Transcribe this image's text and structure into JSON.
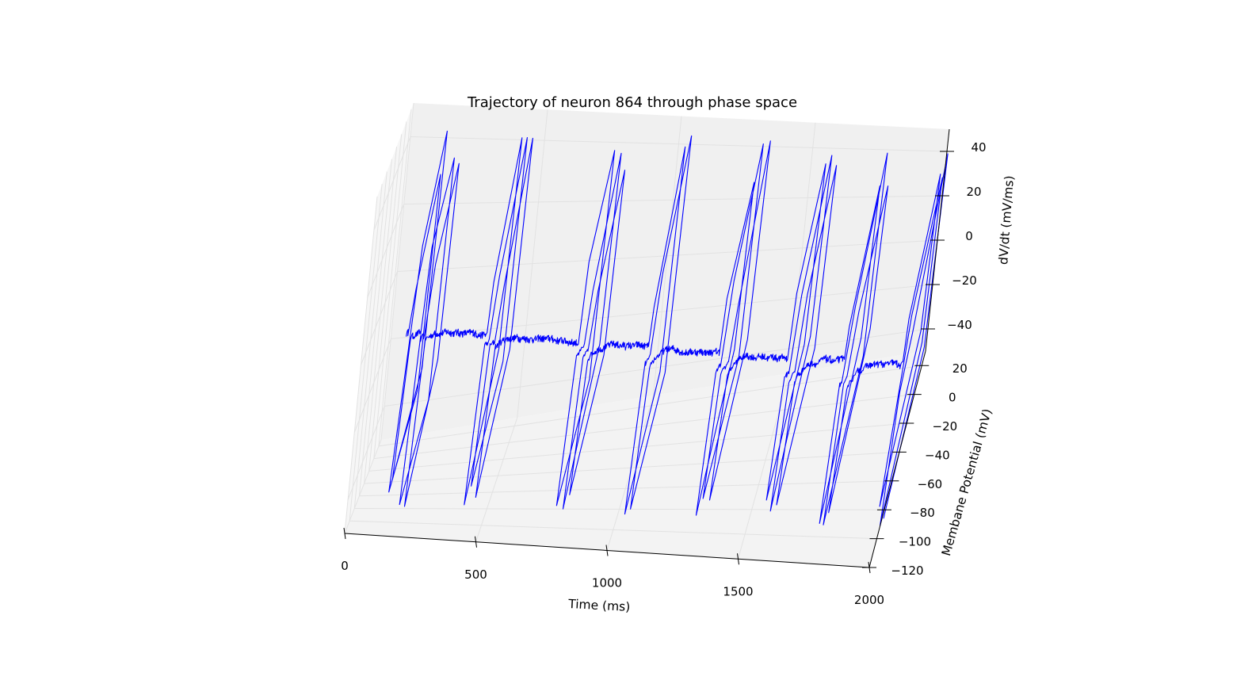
{
  "chart_data": {
    "type": "line",
    "projection": "3d",
    "title": "Trajectory of neuron 864 through phase space",
    "xlabel": "Time (ms)",
    "ylabel": "Membane Potential (mV)",
    "zlabel": "dV/dt (mV/ms)",
    "xlim": [
      0,
      2000
    ],
    "ylim": [
      -120,
      30
    ],
    "zlim": [
      -50,
      50
    ],
    "x_ticks": [
      "0",
      "500",
      "1000",
      "1500",
      "2000"
    ],
    "y_ticks": [
      "−120",
      "−100",
      "−80",
      "−60",
      "−40",
      "−20",
      "0",
      "20"
    ],
    "z_ticks": [
      "−40",
      "−20",
      "0",
      "20",
      "40"
    ],
    "grid": true,
    "colors": {
      "line": "#0000ff",
      "pane_back": "#f0f0f0",
      "pane_side": "#f6f6f6",
      "pane_floor": "#f3f3f3",
      "grid": "#e2e2e2"
    },
    "series": [
      {
        "spike_times_ms": [
          130,
          140,
          175,
          195,
          420,
          440,
          460,
          770,
          795,
          815,
          1030,
          1050,
          1300,
          1320,
          1345,
          1560,
          1580,
          1600,
          1770,
          1785,
          1800,
          1990,
          2000,
          2010
        ],
        "interval_start_ms": 125,
        "interval_end_ms": 2015,
        "resting_potential_mV": -70,
        "threshold_mV": -50,
        "peak_potential_mV": 20,
        "reset_potential_mV": -80
      }
    ]
  }
}
